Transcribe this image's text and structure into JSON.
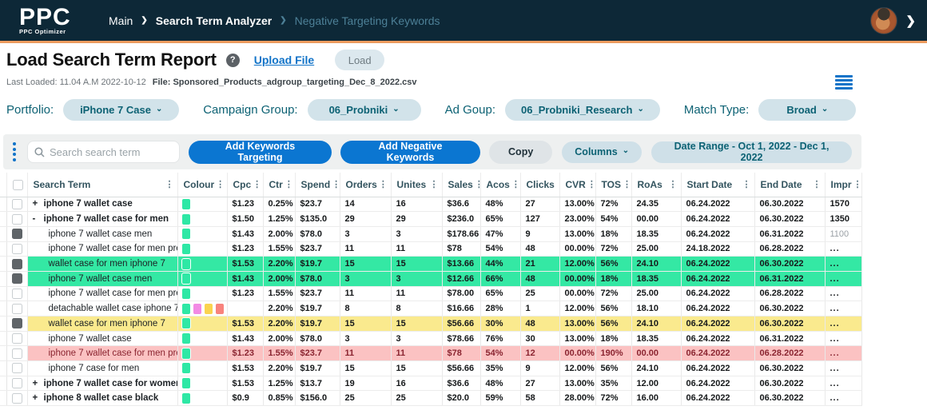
{
  "brand": {
    "logo": "PPC",
    "tagline": "PPC Optimizer"
  },
  "breadcrumb": {
    "items": [
      "Main",
      "Search Term Analyzer",
      "Negative Targeting Keywords"
    ]
  },
  "icons": {
    "chevron_right": "❯",
    "dropdown": "⌄",
    "kebab": "⋮",
    "help": "?"
  },
  "page": {
    "title": "Load Search Term Report",
    "upload_link": "Upload File",
    "load_button": "Load",
    "last_loaded_label": "Last Loaded: 11.04 A.M 2022-10-12",
    "file_label": "File: Sponsored_Products_adgroup_targeting_Dec_8_2022.csv"
  },
  "filters": [
    {
      "label": "Portfolio:",
      "value": "iPhone 7 Case"
    },
    {
      "label": "Campaign Group:",
      "value": "06_Probniki"
    },
    {
      "label": "Ad Goup:",
      "value": "06_Probniki_Research"
    },
    {
      "label": "Match Type:",
      "value": "Broad"
    }
  ],
  "toolbar": {
    "search_placeholder": "Search search term",
    "buttons": {
      "add_keywords": "Add Keywords Targeting",
      "add_negative": "Add Negative Keywords",
      "copy": "Copy",
      "columns": "Columns",
      "date_range": "Date Range - Oct 1, 2022 - Dec 1, 2022"
    }
  },
  "colors": {
    "header_bg": "#0d2837",
    "orange_accent": "#ec9b5e",
    "link_blue": "#1173c8",
    "button_blue": "#0b76d1",
    "teal_label": "#0d6274",
    "pill_bg": "#d2e3ea",
    "row_green": "#34e8a4",
    "row_yellow": "#faea8e",
    "row_red": "#fbc2c2",
    "red_text": "#8a2430",
    "swatch_green": "#2ee8a5",
    "swatch_pink": "#f28ae4",
    "swatch_yellow": "#fad34f",
    "swatch_salmon": "#f8837d",
    "swatch_cyan": "#19dff0"
  },
  "table": {
    "columns": [
      "Search Term",
      "Colour",
      "Cpc",
      "Ctr",
      "Spend",
      "Orders",
      "Unites",
      "Sales",
      "Acos",
      "Clicks",
      "CVR",
      "TOS",
      "RoAs",
      "Start Date",
      "End Date",
      "Impr"
    ],
    "rows": [
      {
        "prefix": "+",
        "term": "iphone 7 wallet case",
        "indent": false,
        "checked": false,
        "highlight": "none",
        "swatches": [
          "green"
        ],
        "cells": [
          "$1.23",
          "0.25%",
          "$23.7",
          "14",
          "16",
          "$36.6",
          "48%",
          "27",
          "13.00%",
          "72%",
          "24.35",
          "06.24.2022",
          "06.30.2022",
          "1570"
        ],
        "impr_muted": false
      },
      {
        "prefix": "-",
        "term": "iphone 7 wallet case for men",
        "indent": false,
        "checked": false,
        "highlight": "none",
        "swatches": [
          "green"
        ],
        "cells": [
          "$1.50",
          "1.25%",
          "$135.0",
          "29",
          "29",
          "$236.0",
          "65%",
          "127",
          "23.00%",
          "54%",
          "00.00",
          "06.24.2022",
          "06.30.2022",
          "1350"
        ],
        "impr_muted": false
      },
      {
        "prefix": "",
        "term": "iphone 7 wallet case men",
        "indent": true,
        "checked": true,
        "highlight": "none",
        "swatches": [
          "green"
        ],
        "cells": [
          "$1.43",
          "2.00%",
          "$78.0",
          "3",
          "3",
          "$178.66",
          "47%",
          "9",
          "13.00%",
          "18%",
          "18.35",
          "06.24.2022",
          "06.31.2022",
          "1100"
        ],
        "impr_muted": true
      },
      {
        "prefix": "",
        "term": "iphone 7 wallet case for men pres",
        "indent": true,
        "checked": false,
        "highlight": "none",
        "swatches": [
          "green"
        ],
        "cells": [
          "$1.23",
          "1.55%",
          "$23.7",
          "11",
          "11",
          "$78",
          "54%",
          "48",
          "00.00%",
          "72%",
          "25.00",
          "24.18.2022",
          "06.28.2022",
          "..."
        ],
        "impr_muted": false
      },
      {
        "prefix": "",
        "term": "wallet case for men iphone 7",
        "indent": true,
        "checked": true,
        "highlight": "green",
        "swatches": [
          "green"
        ],
        "cells": [
          "$1.53",
          "2.20%",
          "$19.7",
          "15",
          "15",
          "$13.66",
          "44%",
          "21",
          "12.00%",
          "56%",
          "24.10",
          "06.24.2022",
          "06.30.2022",
          "..."
        ],
        "impr_muted": false
      },
      {
        "prefix": "",
        "term": "iphone 7 wallet case men",
        "indent": true,
        "checked": true,
        "highlight": "green",
        "swatches": [
          "green"
        ],
        "cells": [
          "$1.43",
          "2.00%",
          "$78.0",
          "3",
          "3",
          "$12.66",
          "66%",
          "48",
          "00.00%",
          "18%",
          "18.35",
          "06.24.2022",
          "06.31.2022",
          "..."
        ],
        "impr_muted": false
      },
      {
        "prefix": "",
        "term": "iphone 7 wallet case for men pres",
        "indent": true,
        "checked": false,
        "highlight": "none",
        "swatches": [
          "green"
        ],
        "cells": [
          "$1.23",
          "1.55%",
          "$23.7",
          "11",
          "11",
          "$78.00",
          "65%",
          "25",
          "00.00%",
          "72%",
          "25.00",
          "06.24.2022",
          "06.28.2022",
          "..."
        ],
        "impr_muted": false
      },
      {
        "prefix": "",
        "term": "detachable wallet case iphone 7",
        "indent": true,
        "checked": false,
        "highlight": "none",
        "swatches": [
          "green",
          "pink",
          "yellow",
          "salmon",
          "cyan"
        ],
        "cells": [
          "",
          "2.20%",
          "$19.7",
          "8",
          "8",
          "$16.66",
          "28%",
          "1",
          "12.00%",
          "56%",
          "18.10",
          "06.24.2022",
          "06.30.2022",
          "..."
        ],
        "impr_muted": false
      },
      {
        "prefix": "",
        "term": "wallet case for men iphone 7",
        "indent": true,
        "checked": true,
        "highlight": "yellow",
        "swatches": [
          "green"
        ],
        "cells": [
          "$1.53",
          "2.20%",
          "$19.7",
          "15",
          "15",
          "$56.66",
          "30%",
          "48",
          "13.00%",
          "56%",
          "24.10",
          "06.24.2022",
          "06.30.2022",
          "..."
        ],
        "impr_muted": false
      },
      {
        "prefix": "",
        "term": "iphone 7 wallet case",
        "indent": true,
        "checked": false,
        "highlight": "none",
        "swatches": [
          "green"
        ],
        "cells": [
          "$1.43",
          "2.00%",
          "$78.0",
          "3",
          "3",
          "$78.66",
          "76%",
          "30",
          "13.00%",
          "18%",
          "18.35",
          "06.24.2022",
          "06.31.2022",
          "..."
        ],
        "impr_muted": false
      },
      {
        "prefix": "",
        "term": "iphone 7 wallet case for men pres",
        "indent": true,
        "checked": false,
        "highlight": "red",
        "swatches": [
          "green"
        ],
        "cells": [
          "$1.23",
          "1.55%",
          "$23.7",
          "11",
          "11",
          "$78",
          "54%",
          "12",
          "00.00%",
          "190%",
          "00.00",
          "06.24.2022",
          "06.28.2022",
          "..."
        ],
        "impr_muted": false
      },
      {
        "prefix": "",
        "term": "iphone 7 case for men",
        "indent": true,
        "checked": false,
        "highlight": "none",
        "swatches": [
          "green"
        ],
        "cells": [
          "$1.53",
          "2.20%",
          "$19.7",
          "15",
          "15",
          "$56.66",
          "35%",
          "9",
          "12.00%",
          "56%",
          "24.10",
          "06.24.2022",
          "06.30.2022",
          "..."
        ],
        "impr_muted": false
      },
      {
        "prefix": "+",
        "term": "iphone 7 wallet case for women",
        "indent": false,
        "checked": false,
        "highlight": "none",
        "swatches": [
          "green"
        ],
        "cells": [
          "$1.53",
          "1.25%",
          "$13.7",
          "19",
          "16",
          "$36.6",
          "48%",
          "27",
          "13.00%",
          "35%",
          "12.00",
          "06.24.2022",
          "06.30.2022",
          "..."
        ],
        "impr_muted": false
      },
      {
        "prefix": "+",
        "term": "iphone 8 wallet case black",
        "indent": false,
        "checked": false,
        "highlight": "none",
        "swatches": [
          "green"
        ],
        "cells": [
          "$0.9",
          "0.85%",
          "$156.0",
          "25",
          "25",
          "$20.0",
          "59%",
          "58",
          "28.00%",
          "72%",
          "16.00",
          "06.24.2022",
          "06.30.2022",
          "..."
        ],
        "impr_muted": false
      }
    ]
  }
}
